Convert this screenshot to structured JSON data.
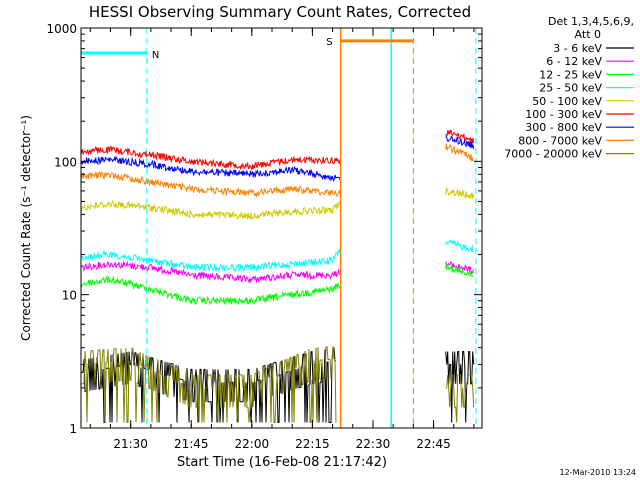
{
  "chart_data": {
    "type": "line",
    "title": "HESSI Observing Summary Count Rates, Corrected",
    "xlabel": "Start Time (16-Feb-08 21:17:42)",
    "ylabel": "Corrected Count Rate (s⁻¹ detector⁻¹)",
    "x_range_minutes": [
      "21:17:42",
      "22:57:00"
    ],
    "x_ticks": [
      "21:30",
      "21:45",
      "22:00",
      "22:15",
      "22:30",
      "22:45"
    ],
    "y_scale": "log",
    "ylim": [
      1,
      1000
    ],
    "y_ticks": [
      "1",
      "10",
      "100",
      "1000"
    ],
    "legend_header": [
      "Det 1,3,4,5,6,9,",
      "Att 0"
    ],
    "legend_position": "top-right",
    "footer_date": "12-Mar-2010 13:24",
    "flags": [
      {
        "label": "N",
        "color": "#00ffff",
        "start": "21:17:42",
        "end": "21:34:00",
        "level": 650
      },
      {
        "label": "S",
        "color": "#ff8000",
        "start": "22:22:00",
        "end": "22:40:00",
        "level": 800
      }
    ],
    "series": [
      {
        "name": "3 - 6 keV",
        "color": "#000000",
        "segments": [
          {
            "points": [
              [
                "21:17:42",
                2.6
              ],
              [
                "21:30",
                3.0
              ],
              [
                "21:45",
                2.2
              ],
              [
                "22:00",
                2.2
              ],
              [
                "22:15",
                3.0
              ],
              [
                "22:21",
                3.2
              ]
            ]
          },
          {
            "points": [
              [
                "22:48",
                3.0
              ],
              [
                "22:55",
                3.0
              ]
            ]
          }
        ]
      },
      {
        "name": "6 - 12 keV",
        "color": "#ff00ff",
        "segments": [
          {
            "points": [
              [
                "21:17:42",
                16
              ],
              [
                "21:25",
                17
              ],
              [
                "21:35",
                16
              ],
              [
                "21:45",
                14
              ],
              [
                "22:00",
                13
              ],
              [
                "22:10",
                14
              ],
              [
                "22:20",
                14
              ],
              [
                "22:22",
                15
              ]
            ]
          },
          {
            "points": [
              [
                "22:48",
                17
              ],
              [
                "22:52",
                16
              ],
              [
                "22:55",
                15
              ]
            ]
          }
        ]
      },
      {
        "name": "12 - 25 keV",
        "color": "#00ff00",
        "segments": [
          {
            "points": [
              [
                "21:17:42",
                12
              ],
              [
                "21:25",
                13
              ],
              [
                "21:35",
                11
              ],
              [
                "21:45",
                9
              ],
              [
                "22:00",
                9
              ],
              [
                "22:10",
                10
              ],
              [
                "22:20",
                11
              ],
              [
                "22:22",
                12
              ]
            ]
          },
          {
            "points": [
              [
                "22:48",
                16
              ],
              [
                "22:52",
                15
              ],
              [
                "22:55",
                14
              ]
            ]
          }
        ]
      },
      {
        "name": "25 - 50 keV",
        "color": "#00ffff",
        "segments": [
          {
            "points": [
              [
                "21:17:42",
                19
              ],
              [
                "21:25",
                20
              ],
              [
                "21:35",
                18
              ],
              [
                "21:45",
                16
              ],
              [
                "22:00",
                16
              ],
              [
                "22:10",
                17
              ],
              [
                "22:20",
                18
              ],
              [
                "22:22",
                22
              ]
            ]
          },
          {
            "points": [
              [
                "22:48",
                25
              ],
              [
                "22:52",
                23
              ],
              [
                "22:55",
                22
              ]
            ]
          }
        ]
      },
      {
        "name": "50 - 100 keV",
        "color": "#cccc00",
        "segments": [
          {
            "points": [
              [
                "21:17:42",
                45
              ],
              [
                "21:25",
                48
              ],
              [
                "21:35",
                45
              ],
              [
                "21:45",
                40
              ],
              [
                "22:00",
                39
              ],
              [
                "22:10",
                42
              ],
              [
                "22:20",
                43
              ],
              [
                "22:22",
                50
              ]
            ]
          },
          {
            "points": [
              [
                "22:48",
                60
              ],
              [
                "22:52",
                57
              ],
              [
                "22:55",
                55
              ]
            ]
          }
        ]
      },
      {
        "name": "100 - 300 keV",
        "color": "#ff0000",
        "segments": [
          {
            "points": [
              [
                "21:17:42",
                118
              ],
              [
                "21:25",
                122
              ],
              [
                "21:35",
                112
              ],
              [
                "21:45",
                100
              ],
              [
                "22:00",
                92
              ],
              [
                "22:10",
                103
              ],
              [
                "22:20",
                102
              ],
              [
                "22:22",
                100
              ]
            ]
          },
          {
            "points": [
              [
                "22:48",
                165
              ],
              [
                "22:52",
                155
              ],
              [
                "22:55",
                140
              ]
            ]
          }
        ]
      },
      {
        "name": "300 - 800 keV",
        "color": "#0000ff",
        "segments": [
          {
            "points": [
              [
                "21:17:42",
                100
              ],
              [
                "21:25",
                103
              ],
              [
                "21:35",
                95
              ],
              [
                "21:45",
                84
              ],
              [
                "22:00",
                80
              ],
              [
                "22:10",
                86
              ],
              [
                "22:20",
                76
              ],
              [
                "22:22",
                72
              ]
            ]
          },
          {
            "points": [
              [
                "22:48",
                150
              ],
              [
                "22:52",
                140
              ],
              [
                "22:55",
                130
              ]
            ]
          }
        ]
      },
      {
        "name": "800 - 7000 keV",
        "color": "#ff8000",
        "segments": [
          {
            "points": [
              [
                "21:17:42",
                77
              ],
              [
                "21:25",
                79
              ],
              [
                "21:35",
                70
              ],
              [
                "21:45",
                62
              ],
              [
                "22:00",
                58
              ],
              [
                "22:10",
                62
              ],
              [
                "22:20",
                58
              ],
              [
                "22:22",
                58
              ]
            ]
          },
          {
            "points": [
              [
                "22:48",
                130
              ],
              [
                "22:52",
                115
              ],
              [
                "22:55",
                105
              ]
            ]
          }
        ]
      },
      {
        "name": "7000 - 20000 keV",
        "color": "#808000",
        "segments": [
          {
            "points": [
              [
                "21:17:42",
                3.0
              ],
              [
                "21:30",
                3.2
              ],
              [
                "21:45",
                2.0
              ],
              [
                "22:00",
                2.0
              ],
              [
                "22:15",
                3.2
              ],
              [
                "22:21",
                3.3
              ]
            ]
          },
          {
            "points": [
              [
                "22:48",
                2.0
              ],
              [
                "22:55",
                2.0
              ]
            ]
          }
        ]
      }
    ],
    "vertical_markers": [
      {
        "time": "21:34:00",
        "color": "#00ffff",
        "style": "dashed"
      },
      {
        "time": "22:22:00",
        "color": "#ff8000",
        "style": "solid"
      },
      {
        "time": "22:34:30",
        "color": "#00ffff",
        "style": "solid"
      },
      {
        "time": "22:40:00",
        "color": "#ff8000",
        "style": "dashed"
      },
      {
        "time": "22:55:30",
        "color": "#00ffff",
        "style": "dashed"
      }
    ]
  }
}
